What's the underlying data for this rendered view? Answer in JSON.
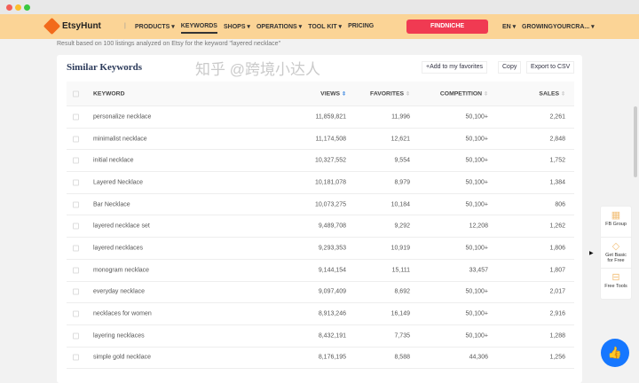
{
  "nav": {
    "brand": "EtsyHunt",
    "items": [
      "PRODUCTS ▾",
      "KEYWORDS",
      "SHOPS ▾",
      "OPERATIONS ▾",
      "TOOL KIT ▾",
      "PRICING"
    ],
    "cta": "FINDNICHE",
    "lang": "EN ▾",
    "account": "GROWINGYOURCRA... ▾"
  },
  "info": "Result based on 100 listings analyzed on Etsy for the keyword \"layered necklace\"",
  "card": {
    "title": "Similar Keywords",
    "add_fav": "+Add to my favorites",
    "copy": "Copy",
    "export": "Export to CSV"
  },
  "table": {
    "headers": [
      "KEYWORD",
      "VIEWS",
      "FAVORITES",
      "COMPETITION",
      "SALES"
    ],
    "rows": [
      [
        "personalize necklace",
        "11,859,821",
        "11,996",
        "50,100+",
        "2,261"
      ],
      [
        "minimalist necklace",
        "11,174,508",
        "12,621",
        "50,100+",
        "2,848"
      ],
      [
        "initial necklace",
        "10,327,552",
        "9,554",
        "50,100+",
        "1,752"
      ],
      [
        "Layered Necklace",
        "10,181,078",
        "8,979",
        "50,100+",
        "1,384"
      ],
      [
        "Bar Necklace",
        "10,073,275",
        "10,184",
        "50,100+",
        "806"
      ],
      [
        "layered necklace set",
        "9,489,708",
        "9,292",
        "12,208",
        "1,262"
      ],
      [
        "layered necklaces",
        "9,293,353",
        "10,919",
        "50,100+",
        "1,806"
      ],
      [
        "monogram necklace",
        "9,144,154",
        "15,111",
        "33,457",
        "1,807"
      ],
      [
        "everyday necklace",
        "9,097,409",
        "8,692",
        "50,100+",
        "2,017"
      ],
      [
        "necklaces for women",
        "8,913,246",
        "16,149",
        "50,100+",
        "2,916"
      ],
      [
        "layering necklaces",
        "8,432,191",
        "7,735",
        "50,100+",
        "1,288"
      ],
      [
        "simple gold necklace",
        "8,176,195",
        "8,588",
        "44,306",
        "1,256"
      ]
    ]
  },
  "side": {
    "fb": "FB Group",
    "basic1": "Get Basic",
    "basic2": "for Free",
    "tools": "Free Tools"
  },
  "watermark": "知乎 @跨境小达人",
  "colors": {
    "nav_bg": "#fbd496",
    "cta": "#f03a52",
    "accent": "#1677ff"
  }
}
